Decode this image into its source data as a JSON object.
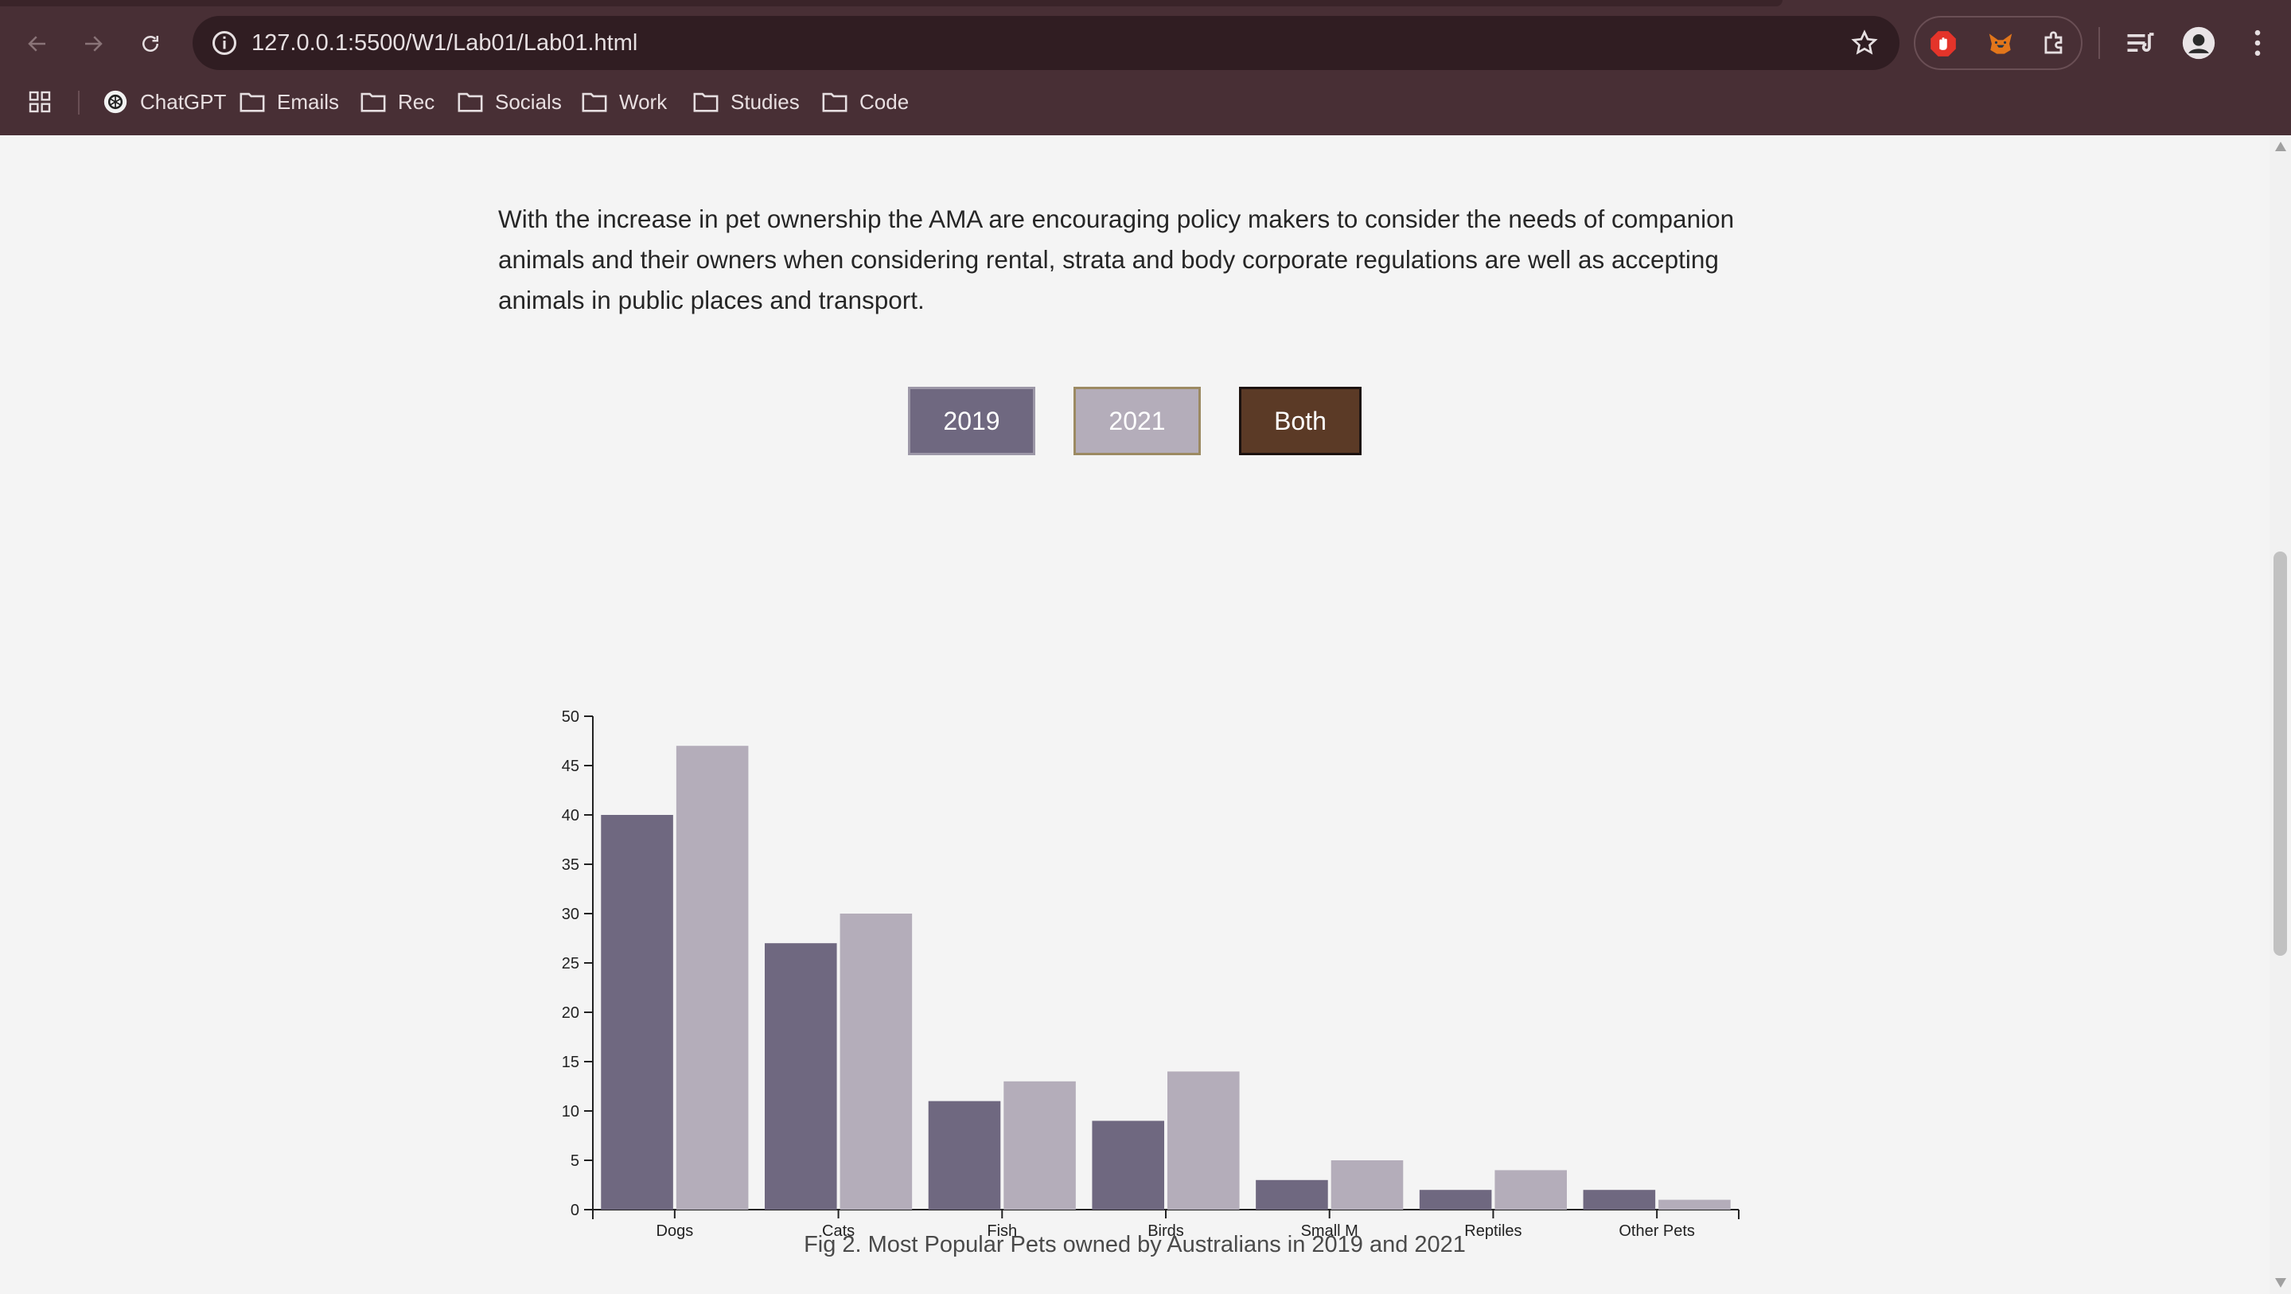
{
  "browser": {
    "url": "127.0.0.1:5500/W1/Lab01/Lab01.html",
    "bookmarks": [
      "ChatGPT",
      "Emails",
      "Rec",
      "Socials",
      "Work",
      "Studies",
      "Code"
    ]
  },
  "page": {
    "intro": "With the increase in pet ownership the AMA are encouraging policy makers to consider the needs of companion animals and their owners when considering rental, strata and body corporate regulations are well as accepting animals in public places and transport.",
    "buttons": {
      "y2019": "2019",
      "y2021": "2021",
      "both": "Both"
    },
    "caption": "Fig 2. Most Popular Pets owned by Australians in 2019 and 2021"
  },
  "colors": {
    "series2019": "#6f6880",
    "series2021": "#b4adba",
    "both": "#5b3a26",
    "chrome": "#482f35"
  },
  "chart_data": {
    "type": "bar",
    "categories": [
      "Dogs",
      "Cats",
      "Fish",
      "Birds",
      "Small M",
      "Reptiles",
      "Other Pets"
    ],
    "series": [
      {
        "values": [
          40,
          27,
          11,
          9,
          3,
          2,
          2
        ]
      },
      {
        "values": [
          47,
          30,
          13,
          14,
          5,
          4,
          1
        ]
      }
    ],
    "ylim": [
      0,
      50
    ],
    "yticks": [
      0,
      5,
      10,
      15,
      20,
      25,
      30,
      35,
      40,
      45,
      50
    ],
    "grid": false,
    "legend": "none"
  }
}
